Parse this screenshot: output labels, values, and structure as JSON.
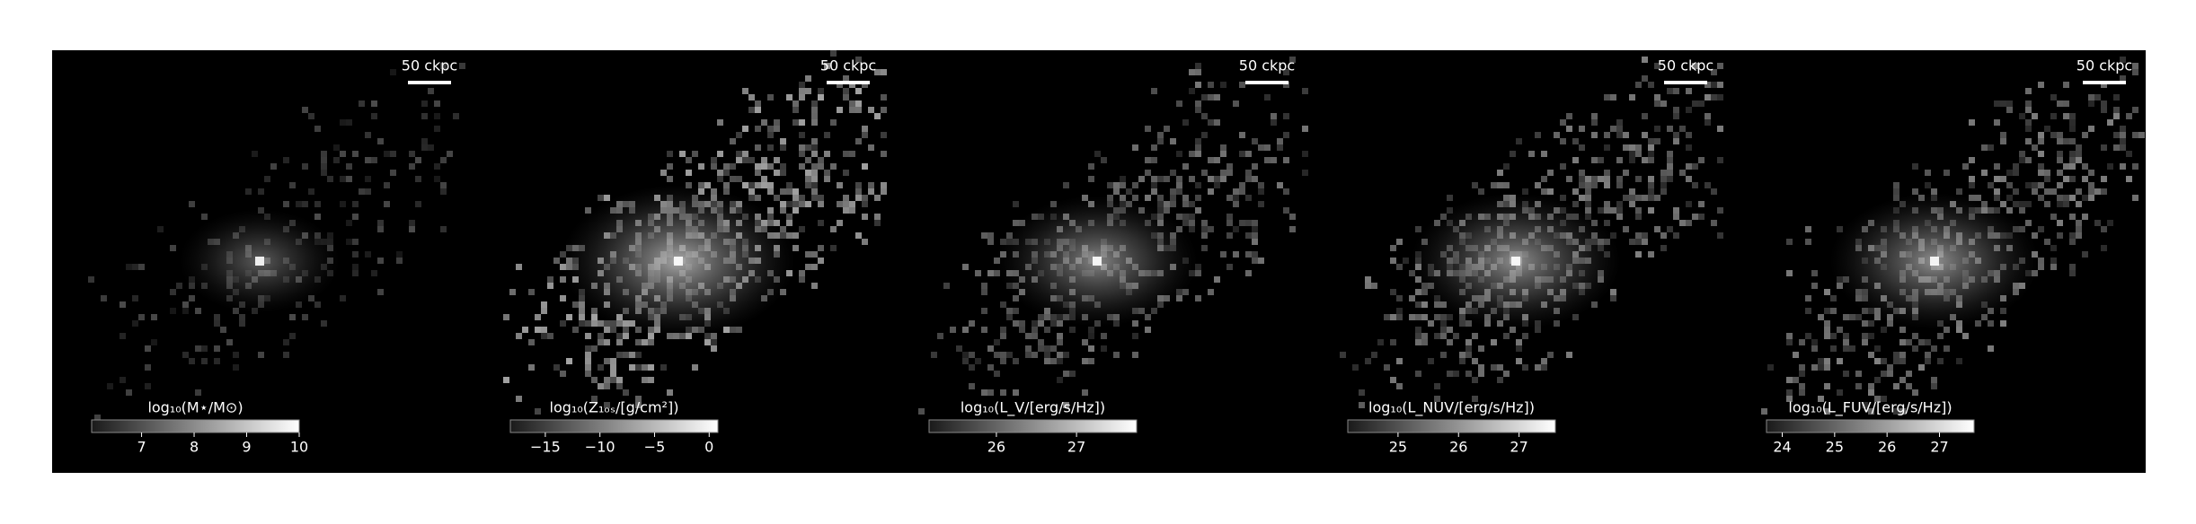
{
  "panels": [
    {
      "scale_bar": "50 ckpc",
      "colorbar": {
        "label": "log₁₀(M⋆/M⊙)",
        "lim": [
          6.05,
          10
        ],
        "ticks": [
          7,
          8,
          9,
          10
        ]
      }
    },
    {
      "scale_bar": "50 ckpc",
      "colorbar": {
        "label": "log₁₀(Z₁ₒₛ/[g/cm²])",
        "lim": [
          -18.2,
          0.8
        ],
        "ticks": [
          {
            "value": -15,
            "label": "−15"
          },
          {
            "value": -10,
            "label": "−10"
          },
          {
            "value": -5,
            "label": "−5"
          },
          0
        ]
      }
    },
    {
      "scale_bar": "50 ckpc",
      "colorbar": {
        "label": "log₁₀(L_V/[erg/s/Hz])",
        "lim": [
          25.16,
          27.75
        ],
        "ticks": [
          26,
          27
        ]
      }
    },
    {
      "scale_bar": "50 ckpc",
      "colorbar": {
        "label": "log₁₀(L_NUV/[erg/s/Hz])",
        "lim": [
          24.17,
          27.6
        ],
        "ticks": [
          25,
          26,
          27
        ]
      }
    },
    {
      "scale_bar": "50 ckpc",
      "colorbar": {
        "label": "log₁₀(L_FUV/[erg/s/Hz])",
        "lim": [
          23.7,
          27.66
        ],
        "ticks": [
          24,
          25,
          26,
          27
        ]
      }
    }
  ]
}
